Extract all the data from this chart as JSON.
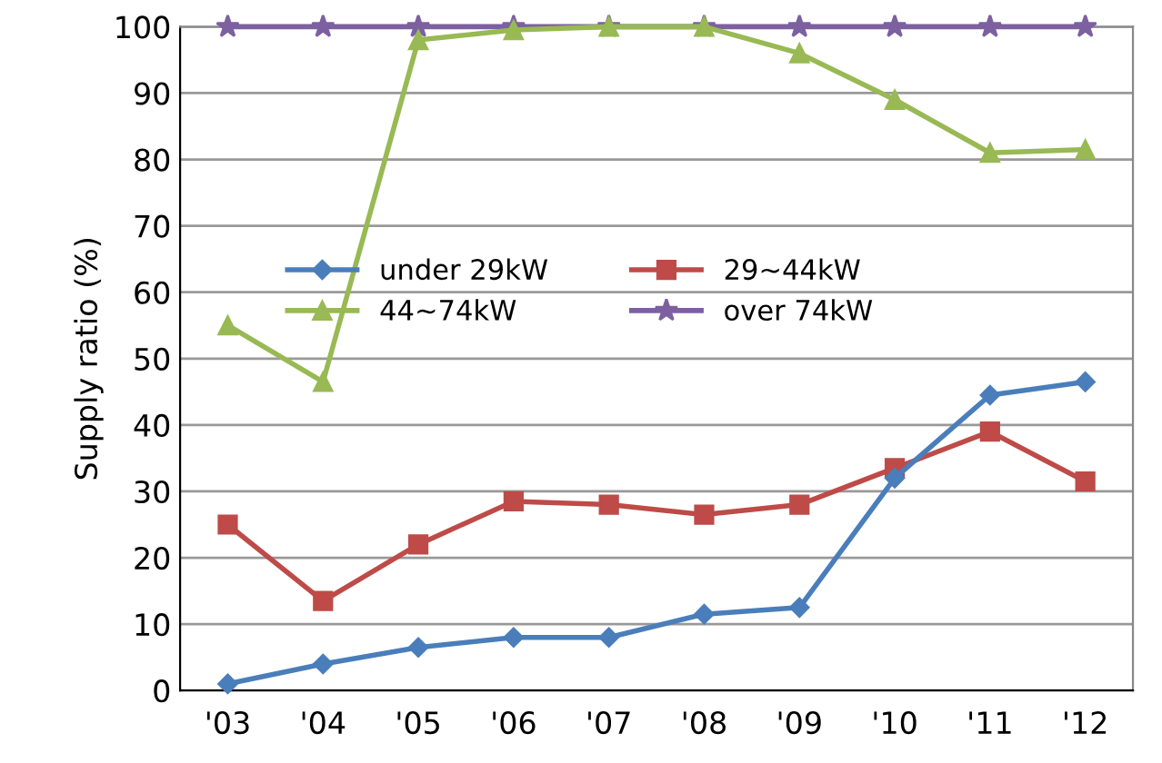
{
  "chart_data": {
    "type": "line",
    "ylabel": "Supply ratio (%)",
    "categories": [
      "'03",
      "'04",
      "'05",
      "'06",
      "'07",
      "'08",
      "'09",
      "'10",
      "'11",
      "'12"
    ],
    "ylim": [
      0,
      100
    ],
    "yticks": [
      0,
      10,
      20,
      30,
      40,
      50,
      60,
      70,
      80,
      90,
      100
    ],
    "grid": "y",
    "legend": "center",
    "line_style": "solid",
    "series": [
      {
        "name": "under 29kW",
        "color": "#4a7ebb",
        "marker": "diamond",
        "values": [
          1,
          4,
          6.5,
          8,
          8,
          11.5,
          12.5,
          32,
          44.5,
          46.5
        ]
      },
      {
        "name": "29~44kW",
        "color": "#be4b48",
        "marker": "square",
        "values": [
          25,
          13.5,
          22,
          28.5,
          28,
          26.5,
          28,
          33.5,
          39,
          31.5
        ]
      },
      {
        "name": "44~74kW",
        "color": "#98b954",
        "marker": "triangle",
        "values": [
          55,
          46.5,
          98,
          99.5,
          100,
          100,
          96,
          89,
          81,
          81.5
        ]
      },
      {
        "name": "over 74kW",
        "color": "#7d60a0",
        "marker": "star",
        "values": [
          100,
          100,
          100,
          100,
          100,
          100,
          100,
          100,
          100,
          100
        ]
      }
    ]
  }
}
